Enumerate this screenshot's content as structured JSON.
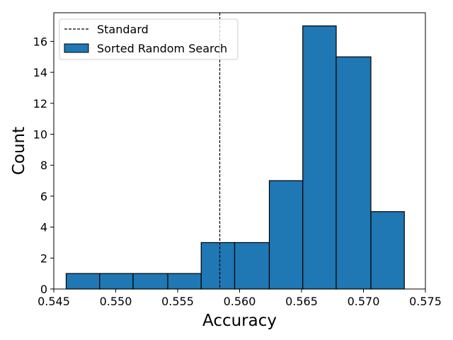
{
  "chart_data": {
    "type": "bar",
    "title": "",
    "xlabel": "Accuracy",
    "ylabel": "Count",
    "xlim": [
      0.545,
      0.575
    ],
    "ylim": [
      0,
      17.85
    ],
    "x_ticks": [
      0.545,
      0.55,
      0.555,
      0.56,
      0.565,
      0.57,
      0.575
    ],
    "x_tick_labels": [
      "0.545",
      "0.550",
      "0.555",
      "0.560",
      "0.565",
      "0.570",
      "0.575"
    ],
    "y_ticks": [
      0,
      2,
      4,
      6,
      8,
      10,
      12,
      14,
      16
    ],
    "y_tick_labels": [
      "0",
      "2",
      "4",
      "6",
      "8",
      "10",
      "12",
      "14",
      "16"
    ],
    "grid": false,
    "legend_position": "top-left",
    "bins": [
      0.546,
      0.5487,
      0.5514,
      0.5542,
      0.5569,
      0.5596,
      0.5624,
      0.5651,
      0.5678,
      0.5706,
      0.5733
    ],
    "series": [
      {
        "name": "Sorted Random Search",
        "type": "histogram",
        "values": [
          1,
          1,
          1,
          1,
          3,
          3,
          7,
          17,
          15,
          5
        ],
        "color": "#1f77b4",
        "edge_color": "#000000"
      },
      {
        "name": "Standard",
        "type": "vline",
        "x": 0.5584,
        "color": "#000000",
        "style": "dashed"
      }
    ],
    "legend": [
      {
        "label": "Standard",
        "kind": "dashed-line"
      },
      {
        "label": "Sorted Random Search",
        "kind": "patch"
      }
    ]
  }
}
